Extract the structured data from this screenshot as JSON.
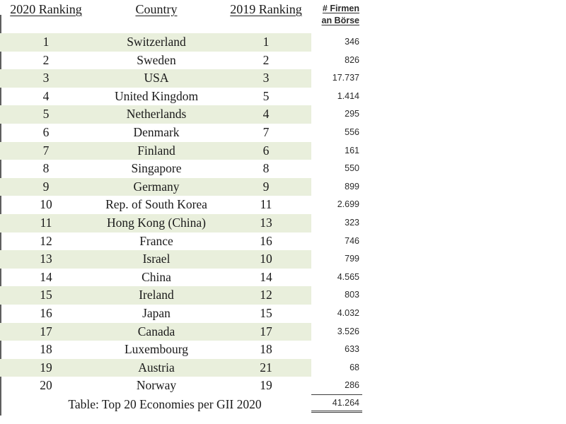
{
  "table": {
    "headers": {
      "rank2020": "2020 Ranking",
      "country": "Country",
      "rank2019": "2019 Ranking",
      "firms_line1": "# Firmen",
      "firms_line2": "an Börse"
    },
    "rows": [
      {
        "rank2020": "1",
        "country": "Switzerland",
        "rank2019": "1",
        "firms": "346"
      },
      {
        "rank2020": "2",
        "country": "Sweden",
        "rank2019": "2",
        "firms": "826"
      },
      {
        "rank2020": "3",
        "country": "USA",
        "rank2019": "3",
        "firms": "17.737"
      },
      {
        "rank2020": "4",
        "country": "United Kingdom",
        "rank2019": "5",
        "firms": "1.414"
      },
      {
        "rank2020": "5",
        "country": "Netherlands",
        "rank2019": "4",
        "firms": "295"
      },
      {
        "rank2020": "6",
        "country": "Denmark",
        "rank2019": "7",
        "firms": "556"
      },
      {
        "rank2020": "7",
        "country": "Finland",
        "rank2019": "6",
        "firms": "161"
      },
      {
        "rank2020": "8",
        "country": "Singapore",
        "rank2019": "8",
        "firms": "550"
      },
      {
        "rank2020": "9",
        "country": "Germany",
        "rank2019": "9",
        "firms": "899"
      },
      {
        "rank2020": "10",
        "country": "Rep. of South Korea",
        "rank2019": "11",
        "firms": "2.699"
      },
      {
        "rank2020": "11",
        "country": "Hong Kong (China)",
        "rank2019": "13",
        "firms": "323"
      },
      {
        "rank2020": "12",
        "country": "France",
        "rank2019": "16",
        "firms": "746"
      },
      {
        "rank2020": "13",
        "country": "Israel",
        "rank2019": "10",
        "firms": "799"
      },
      {
        "rank2020": "14",
        "country": "China",
        "rank2019": "14",
        "firms": "4.565"
      },
      {
        "rank2020": "15",
        "country": "Ireland",
        "rank2019": "12",
        "firms": "803"
      },
      {
        "rank2020": "16",
        "country": "Japan",
        "rank2019": "15",
        "firms": "4.032"
      },
      {
        "rank2020": "17",
        "country": "Canada",
        "rank2019": "17",
        "firms": "3.526"
      },
      {
        "rank2020": "18",
        "country": "Luxembourg",
        "rank2019": "18",
        "firms": "633"
      },
      {
        "rank2020": "19",
        "country": "Austria",
        "rank2019": "21",
        "firms": "68"
      },
      {
        "rank2020": "20",
        "country": "Norway",
        "rank2019": "19",
        "firms": "286"
      }
    ],
    "footer": {
      "caption": "Table: Top 20 Economies per GII 2020",
      "total": "41.264"
    },
    "colors": {
      "stripe_green": "#e9efdc",
      "serif_text": "#1a1a1a",
      "number_text": "#2b2b2b",
      "left_rule_gray": "#5f5f5f"
    }
  }
}
